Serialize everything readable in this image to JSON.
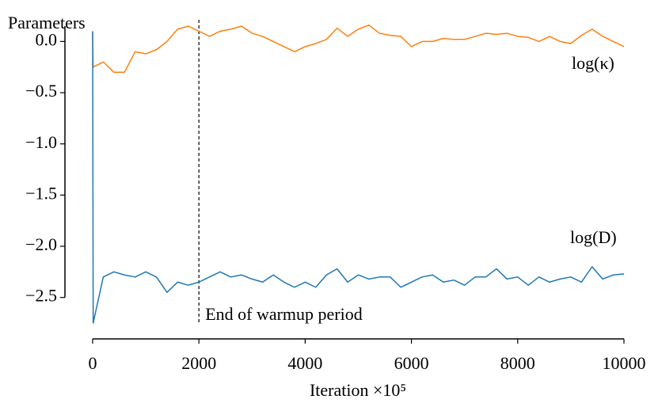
{
  "chart_data": {
    "type": "line",
    "ylabel": "Parameters",
    "xlabel": "Iteration ×10⁵",
    "x": [
      0,
      10,
      200,
      400,
      600,
      800,
      1000,
      1200,
      1400,
      1600,
      1800,
      2000,
      2200,
      2400,
      2600,
      2800,
      3000,
      3200,
      3400,
      3600,
      3800,
      4000,
      4200,
      4400,
      4600,
      4800,
      5000,
      5200,
      5400,
      5600,
      5800,
      6000,
      6200,
      6400,
      6600,
      6800,
      7000,
      7200,
      7400,
      7600,
      7800,
      8000,
      8200,
      8400,
      8600,
      8800,
      9000,
      9200,
      9400,
      9600,
      9800,
      10000
    ],
    "series": [
      {
        "name": "log(κ)",
        "color": "#ff7f0e",
        "values": [
          0.1,
          -0.25,
          -0.2,
          -0.3,
          -0.3,
          -0.1,
          -0.12,
          -0.08,
          0.0,
          0.12,
          0.15,
          0.1,
          0.05,
          0.1,
          0.12,
          0.15,
          0.08,
          0.05,
          0.0,
          -0.05,
          -0.1,
          -0.05,
          -0.02,
          0.02,
          0.13,
          0.05,
          0.12,
          0.16,
          0.08,
          0.06,
          0.05,
          -0.05,
          0.0,
          0.0,
          0.03,
          0.02,
          0.02,
          0.05,
          0.08,
          0.07,
          0.08,
          0.05,
          0.04,
          0.0,
          0.05,
          0.0,
          -0.02,
          0.06,
          0.12,
          0.05,
          0.0,
          -0.05
        ]
      },
      {
        "name": "log(D)",
        "color": "#1f77b4",
        "values": [
          0.1,
          -2.75,
          -2.3,
          -2.25,
          -2.28,
          -2.3,
          -2.25,
          -2.3,
          -2.45,
          -2.35,
          -2.38,
          -2.35,
          -2.3,
          -2.25,
          -2.3,
          -2.28,
          -2.32,
          -2.35,
          -2.28,
          -2.35,
          -2.4,
          -2.35,
          -2.4,
          -2.28,
          -2.22,
          -2.35,
          -2.28,
          -2.32,
          -2.3,
          -2.3,
          -2.4,
          -2.35,
          -2.3,
          -2.28,
          -2.35,
          -2.33,
          -2.38,
          -2.3,
          -2.3,
          -2.22,
          -2.32,
          -2.3,
          -2.38,
          -2.3,
          -2.35,
          -2.32,
          -2.3,
          -2.35,
          -2.2,
          -2.32,
          -2.28,
          -2.27
        ]
      }
    ],
    "vline": {
      "x": 2000,
      "label": "End of warmup period"
    },
    "xlim": [
      0,
      10000
    ],
    "xticks": [
      0,
      2000,
      4000,
      6000,
      8000,
      10000
    ],
    "ylim": [
      -2.75,
      0.15
    ],
    "yticks": [
      {
        "value": 0,
        "label": "0.0"
      },
      {
        "value": -0.5,
        "label": "−0.5"
      },
      {
        "value": -1,
        "label": "−1.0"
      },
      {
        "value": -1.5,
        "label": "−1.5"
      },
      {
        "value": -2,
        "label": "−2.0"
      },
      {
        "value": -2.5,
        "label": "−2.5"
      }
    ],
    "grid": false
  }
}
